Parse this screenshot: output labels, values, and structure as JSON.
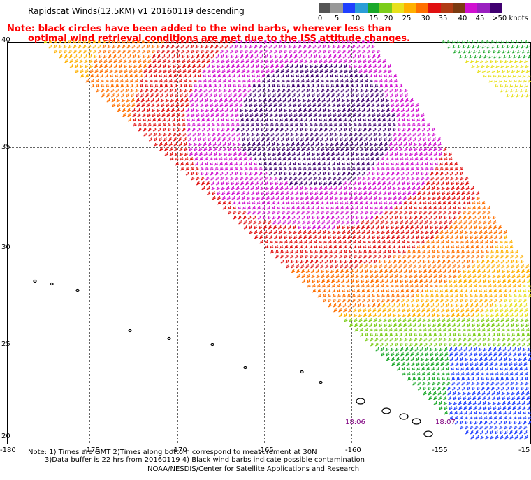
{
  "title": "Rapidscat Winds(12.5KM) v1 20160119 descending",
  "note_line1": "Note: black circles have been added to the wind barbs, wherever less than",
  "note_line2": "optimal wind retrieval conditions are met due to the ISS attitude changes.",
  "colorbar": {
    "labels": [
      "0",
      "5",
      "10",
      "15",
      "20",
      "25",
      "30",
      "35",
      "40",
      "45",
      ">50 knots"
    ],
    "colors": [
      "#555555",
      "#999999",
      "#1f3fff",
      "#2a9dd7",
      "#1aa82a",
      "#7ccd1a",
      "#e8e01c",
      "#ffb000",
      "#ff7000",
      "#e01010",
      "#b03c14",
      "#7a3a10",
      "#d010d0",
      "#9a20c0",
      "#400070"
    ]
  },
  "lat_labels": [
    "40",
    "35",
    "30",
    "25",
    "20"
  ],
  "lon_labels": [
    "-180",
    "-175",
    "-170",
    "-165",
    "-160",
    "-155",
    "-15"
  ],
  "time_labels": [
    "18:06",
    "18:07"
  ],
  "footer_line1": "Note: 1) Times are GMT  2)Times along bottom correspond to measurement at 30N",
  "footer_line2": "3)Data buffer is 22 hrs from 20160119  4) Black wind barbs indicate possible contamination",
  "footer_line3": "NOAA/NESDIS/Center for Satellite Applications and Research"
}
